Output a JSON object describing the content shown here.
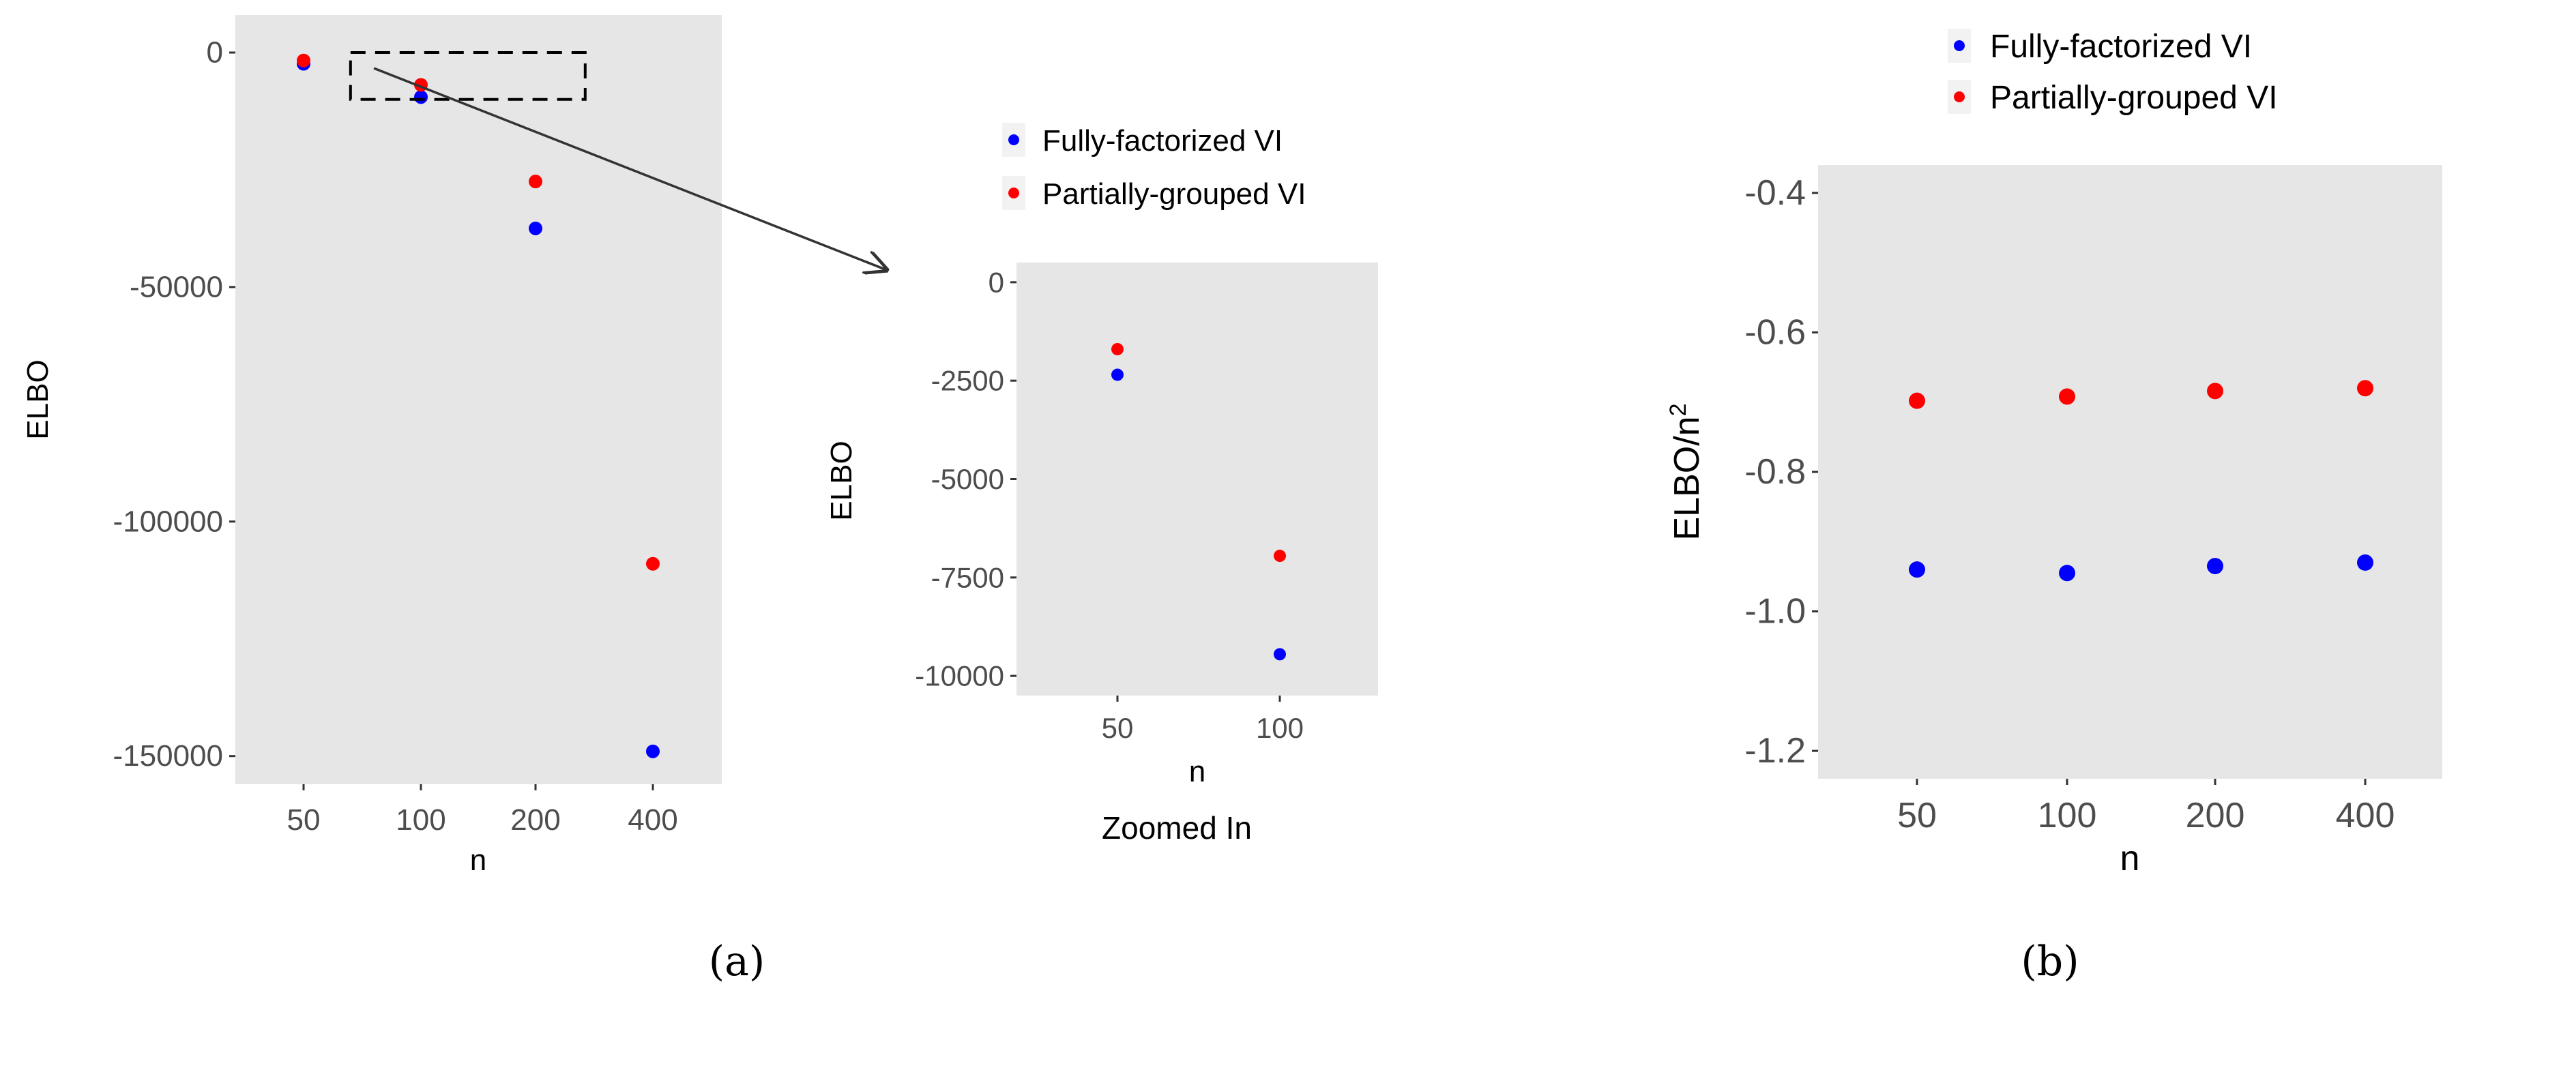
{
  "captions": {
    "a": "(a)",
    "b": "(b)"
  },
  "legend": {
    "series_a": "Fully-factorized VI",
    "series_b": "Partially-grouped VI"
  },
  "colors": {
    "fully_factorized": "#0000ff",
    "partially_grouped": "#ff0000",
    "panel_background": "#e6e6e6",
    "tick_text": "#4d4d4d",
    "axis_title": "#000000"
  },
  "chart_data": [
    {
      "id": "main",
      "type": "scatter",
      "xlabel": "n",
      "ylabel": "ELBO",
      "categories": [
        "50",
        "100",
        "200",
        "400"
      ],
      "ylim": [
        -156000,
        8000
      ],
      "yticks": [
        0,
        -50000,
        -100000,
        -150000
      ],
      "ytick_labels": [
        "0",
        "-50000",
        "-100000",
        "-150000"
      ],
      "grid": false,
      "zoom_box": {
        "x_from": 0.4,
        "x_to": 2.4,
        "y_from": -10000,
        "y_to": 0
      },
      "series": [
        {
          "name": "Fully-factorized VI",
          "color": "#0000ff",
          "values": [
            -2400,
            -9500,
            -37500,
            -149000
          ]
        },
        {
          "name": "Partially-grouped VI",
          "color": "#ff0000",
          "values": [
            -1700,
            -6900,
            -27500,
            -109000
          ]
        }
      ]
    },
    {
      "id": "zoom",
      "type": "scatter",
      "title_below": "Zoomed In",
      "xlabel": "n",
      "ylabel": "ELBO",
      "categories": [
        "50",
        "100"
      ],
      "ylim": [
        -10500,
        500
      ],
      "yticks": [
        0,
        -2500,
        -5000,
        -7500,
        -10000
      ],
      "ytick_labels": [
        "0",
        "-2500",
        "-5000",
        "-7500",
        "-10000"
      ],
      "legend_position": "top",
      "grid": false,
      "series": [
        {
          "name": "Fully-factorized VI",
          "color": "#0000ff",
          "values": [
            -2350,
            -9450
          ]
        },
        {
          "name": "Partially-grouped VI",
          "color": "#ff0000",
          "values": [
            -1700,
            -6950
          ]
        }
      ]
    },
    {
      "id": "normalized",
      "type": "scatter",
      "xlabel": "n",
      "ylabel_main": "ELBO/n",
      "ylabel_superscript": "2",
      "categories": [
        "50",
        "100",
        "200",
        "400"
      ],
      "ylim": [
        -1.24,
        -0.36
      ],
      "yticks": [
        -0.4,
        -0.6,
        -0.8,
        -1.0,
        -1.2
      ],
      "ytick_labels": [
        "-0.4",
        "-0.6",
        "-0.8",
        "-1.0",
        "-1.2"
      ],
      "legend_position": "top",
      "grid": false,
      "series": [
        {
          "name": "Fully-factorized VI",
          "color": "#0000ff",
          "values": [
            -0.94,
            -0.945,
            -0.935,
            -0.93
          ]
        },
        {
          "name": "Partially-grouped VI",
          "color": "#ff0000",
          "values": [
            -0.698,
            -0.692,
            -0.684,
            -0.68
          ]
        }
      ]
    }
  ]
}
